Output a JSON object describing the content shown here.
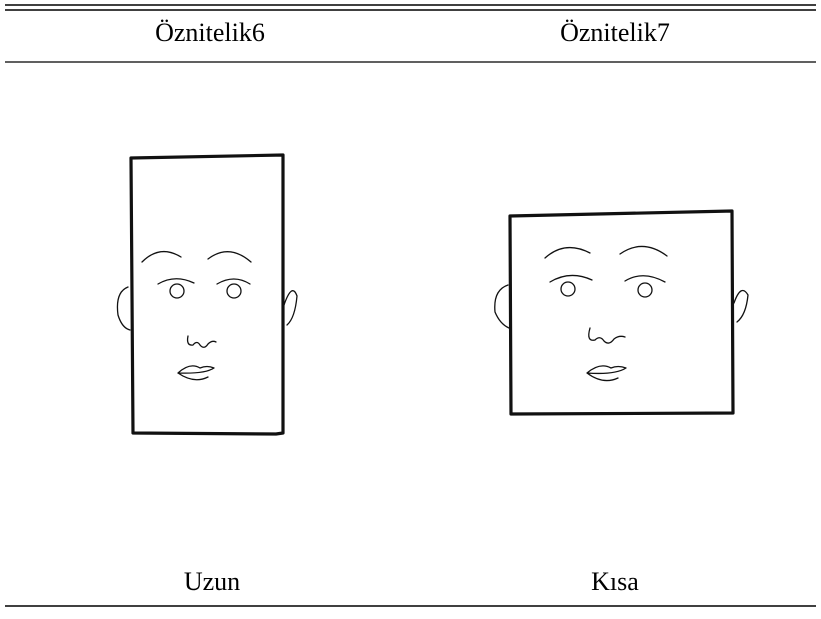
{
  "table": {
    "headers": [
      "Öznitelik6",
      "Öznitelik7"
    ],
    "rows": [
      [
        "Uzun",
        "Kısa"
      ]
    ]
  }
}
